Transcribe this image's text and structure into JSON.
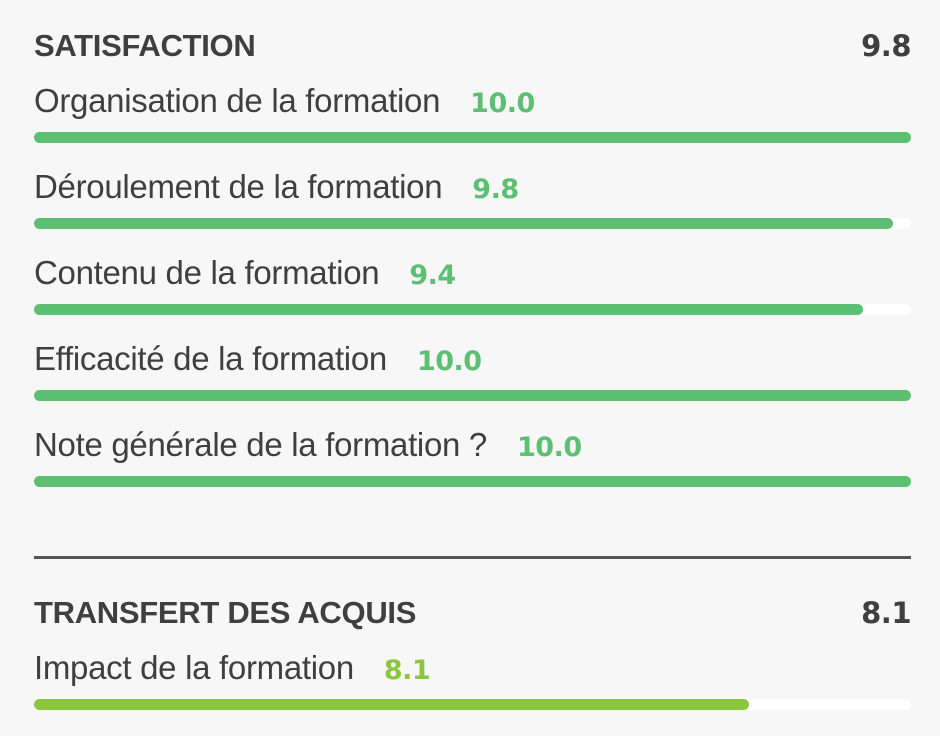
{
  "sections": [
    {
      "title": "SATISFACTION",
      "score": "9.8",
      "items": [
        {
          "label": "Organisation de la formation",
          "value": "10.0",
          "fraction": 1.0,
          "color": "#5cbf72"
        },
        {
          "label": "Déroulement de la formation",
          "value": "9.8",
          "fraction": 0.98,
          "color": "#5cbf72"
        },
        {
          "label": "Contenu de la formation",
          "value": "9.4",
          "fraction": 0.945,
          "color": "#5cbf72"
        },
        {
          "label": "Efficacité de la formation",
          "value": "10.0",
          "fraction": 1.0,
          "color": "#5cbf72"
        },
        {
          "label": "Note générale de la formation ?",
          "value": "10.0",
          "fraction": 1.0,
          "color": "#5cbf72"
        }
      ]
    },
    {
      "title": "TRANSFERT DES ACQUIS",
      "score": "8.1",
      "items": [
        {
          "label": "Impact de la formation",
          "value": "8.1",
          "fraction": 0.815,
          "color": "#8cc63f"
        }
      ]
    }
  ]
}
